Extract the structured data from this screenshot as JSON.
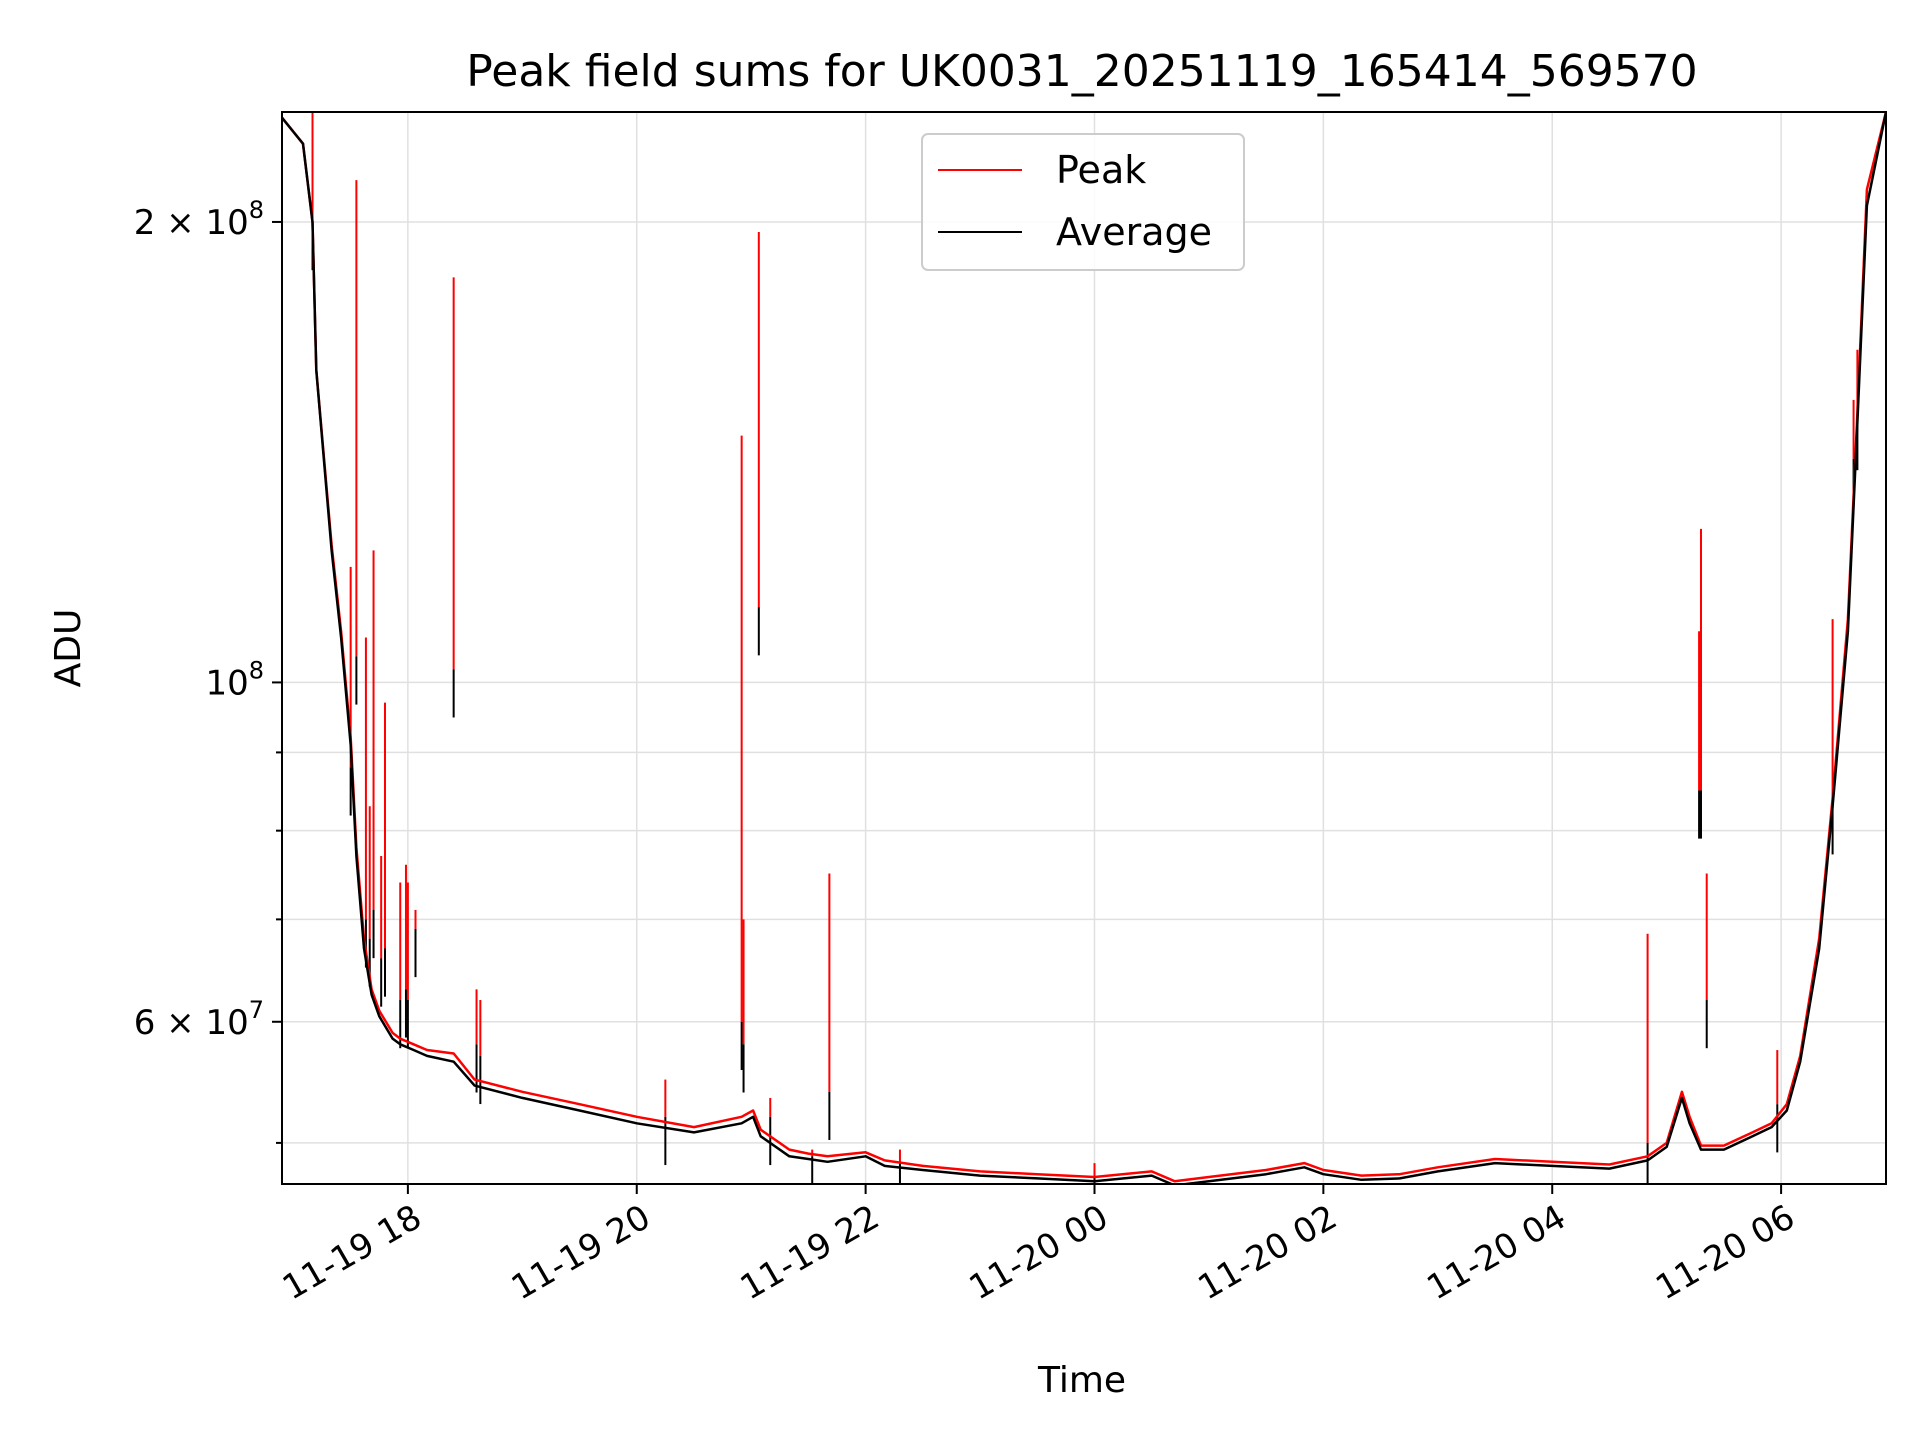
{
  "chart_data": {
    "type": "line",
    "title": "Peak field sums for UK0031_20251119_165414_569570",
    "xlabel": "Time",
    "ylabel": "ADU",
    "yscale": "log",
    "xlim": [
      "2025-11-19T16:54:00",
      "2025-11-20T06:55:00"
    ],
    "ylim": [
      47000000,
      236000000
    ],
    "grid": true,
    "legend_placement": "upper-center",
    "colors": {
      "peak": "#ff0000",
      "average": "#000000",
      "grid": "#e0e0e0"
    },
    "x_ticks": [
      {
        "t": "2025-11-19T18:00:00",
        "label": "11-19 18"
      },
      {
        "t": "2025-11-19T20:00:00",
        "label": "11-19 20"
      },
      {
        "t": "2025-11-19T22:00:00",
        "label": "11-19 22"
      },
      {
        "t": "2025-11-20T00:00:00",
        "label": "11-20 00"
      },
      {
        "t": "2025-11-20T02:00:00",
        "label": "11-20 02"
      },
      {
        "t": "2025-11-20T04:00:00",
        "label": "11-20 04"
      },
      {
        "t": "2025-11-20T06:00:00",
        "label": "11-20 06"
      }
    ],
    "y_ticks_major": [
      {
        "v": 100000000,
        "base": "10",
        "exp": "8",
        "coef": ""
      },
      {
        "v": 200000000,
        "base": "10",
        "exp": "8",
        "coef": "2"
      },
      {
        "v": 60000000,
        "base": "10",
        "exp": "7",
        "coef": "6"
      }
    ],
    "y_ticks_minor": [
      50000000,
      70000000,
      80000000,
      90000000
    ],
    "series": [
      {
        "name": "Peak",
        "x": [
          "2025-11-19T16:54:00",
          "2025-11-19T17:05:00",
          "2025-11-19T17:10:00",
          "2025-11-19T17:12:00",
          "2025-11-19T17:20:00",
          "2025-11-19T17:25:00",
          "2025-11-19T17:30:00",
          "2025-11-19T17:33:00",
          "2025-11-19T17:37:00",
          "2025-11-19T17:41:00",
          "2025-11-19T17:45:00",
          "2025-11-19T17:52:00",
          "2025-11-19T17:56:00",
          "2025-11-19T18:03:00",
          "2025-11-19T18:10:00",
          "2025-11-19T18:24:00",
          "2025-11-19T18:35:00",
          "2025-11-19T19:00:00",
          "2025-11-19T19:30:00",
          "2025-11-19T20:00:00",
          "2025-11-19T20:30:00",
          "2025-11-19T20:55:00",
          "2025-11-19T21:01:00",
          "2025-11-19T21:05:00",
          "2025-11-19T21:20:00",
          "2025-11-19T21:30:00",
          "2025-11-19T21:40:00",
          "2025-11-19T22:00:00",
          "2025-11-19T22:10:00",
          "2025-11-19T22:30:00",
          "2025-11-19T23:00:00",
          "2025-11-19T23:30:00",
          "2025-11-20T00:00:00",
          "2025-11-20T00:30:00",
          "2025-11-20T00:42:00",
          "2025-11-20T01:00:00",
          "2025-11-20T01:30:00",
          "2025-11-20T01:50:00",
          "2025-11-20T02:00:00",
          "2025-11-20T02:20:00",
          "2025-11-20T02:40:00",
          "2025-11-20T03:00:00",
          "2025-11-20T03:30:00",
          "2025-11-20T04:00:00",
          "2025-11-20T04:30:00",
          "2025-11-20T04:50:00",
          "2025-11-20T05:00:00",
          "2025-11-20T05:08:00",
          "2025-11-20T05:12:00",
          "2025-11-20T05:18:00",
          "2025-11-20T05:30:00",
          "2025-11-20T05:45:00",
          "2025-11-20T05:55:00",
          "2025-11-20T06:03:00",
          "2025-11-20T06:10:00",
          "2025-11-20T06:20:00",
          "2025-11-20T06:27:00",
          "2025-11-20T06:35:00",
          "2025-11-20T06:40:00",
          "2025-11-20T06:45:00",
          "2025-11-20T06:55:00"
        ],
        "values": [
          234000000,
          225000000,
          200000000,
          160000000,
          123000000,
          108000000,
          92000000,
          78000000,
          68000000,
          63000000,
          61000000,
          59000000,
          58500000,
          58000000,
          57500000,
          57200000,
          55000000,
          54000000,
          53000000,
          52000000,
          51200000,
          52000000,
          52500000,
          51000000,
          49500000,
          49200000,
          49000000,
          49300000,
          48700000,
          48300000,
          47900000,
          47700000,
          47500000,
          47900000,
          47200000,
          47500000,
          48000000,
          48500000,
          48000000,
          47600000,
          47700000,
          48200000,
          48800000,
          48600000,
          48400000,
          49000000,
          50000000,
          54000000,
          52000000,
          49800000,
          49800000,
          50800000,
          51500000,
          53000000,
          57000000,
          68000000,
          84000000,
          110000000,
          150000000,
          210000000,
          236000000
        ]
      },
      {
        "name": "Average",
        "x": [
          "2025-11-19T16:54:00",
          "2025-11-19T17:05:00",
          "2025-11-19T17:10:00",
          "2025-11-19T17:12:00",
          "2025-11-19T17:20:00",
          "2025-11-19T17:25:00",
          "2025-11-19T17:30:00",
          "2025-11-19T17:33:00",
          "2025-11-19T17:37:00",
          "2025-11-19T17:41:00",
          "2025-11-19T17:45:00",
          "2025-11-19T17:52:00",
          "2025-11-19T17:56:00",
          "2025-11-19T18:03:00",
          "2025-11-19T18:10:00",
          "2025-11-19T18:24:00",
          "2025-11-19T18:35:00",
          "2025-11-19T19:00:00",
          "2025-11-19T19:30:00",
          "2025-11-19T20:00:00",
          "2025-11-19T20:30:00",
          "2025-11-19T20:55:00",
          "2025-11-19T21:01:00",
          "2025-11-19T21:05:00",
          "2025-11-19T21:20:00",
          "2025-11-19T21:30:00",
          "2025-11-19T21:40:00",
          "2025-11-19T22:00:00",
          "2025-11-19T22:10:00",
          "2025-11-19T22:30:00",
          "2025-11-19T23:00:00",
          "2025-11-19T23:30:00",
          "2025-11-20T00:00:00",
          "2025-11-20T00:30:00",
          "2025-11-20T00:42:00",
          "2025-11-20T01:00:00",
          "2025-11-20T01:30:00",
          "2025-11-20T01:50:00",
          "2025-11-20T02:00:00",
          "2025-11-20T02:20:00",
          "2025-11-20T02:40:00",
          "2025-11-20T03:00:00",
          "2025-11-20T03:30:00",
          "2025-11-20T04:00:00",
          "2025-11-20T04:30:00",
          "2025-11-20T04:50:00",
          "2025-11-20T05:00:00",
          "2025-11-20T05:08:00",
          "2025-11-20T05:12:00",
          "2025-11-20T05:18:00",
          "2025-11-20T05:30:00",
          "2025-11-20T05:45:00",
          "2025-11-20T05:55:00",
          "2025-11-20T06:03:00",
          "2025-11-20T06:10:00",
          "2025-11-20T06:20:00",
          "2025-11-20T06:27:00",
          "2025-11-20T06:35:00",
          "2025-11-20T06:40:00",
          "2025-11-20T06:45:00",
          "2025-11-20T06:55:00"
        ],
        "values": [
          234000000,
          225000000,
          200000000,
          160000000,
          122000000,
          107000000,
          91000000,
          77000000,
          67000000,
          62500000,
          60500000,
          58500000,
          58000000,
          57500000,
          57000000,
          56500000,
          54500000,
          53500000,
          52500000,
          51500000,
          50800000,
          51500000,
          52000000,
          50500000,
          49000000,
          48800000,
          48600000,
          49000000,
          48300000,
          48000000,
          47600000,
          47400000,
          47200000,
          47600000,
          46900000,
          47200000,
          47700000,
          48200000,
          47700000,
          47300000,
          47400000,
          47900000,
          48500000,
          48300000,
          48100000,
          48700000,
          49700000,
          53500000,
          51500000,
          49500000,
          49500000,
          50500000,
          51200000,
          52500000,
          56500000,
          67000000,
          83000000,
          108000000,
          148000000,
          205000000,
          236000000
        ]
      }
    ],
    "spikes": [
      {
        "t": "2025-11-19T17:10:00",
        "peak": 236000000,
        "average": 200000000
      },
      {
        "t": "2025-11-19T17:30:00",
        "peak": 119000000,
        "average": 88000000
      },
      {
        "t": "2025-11-19T17:33:00",
        "peak": 213000000,
        "average": 104000000
      },
      {
        "t": "2025-11-19T17:38:00",
        "peak": 107000000,
        "average": 70000000
      },
      {
        "t": "2025-11-19T17:40:00",
        "peak": 83000000,
        "average": 68000000
      },
      {
        "t": "2025-11-19T17:42:00",
        "peak": 122000000,
        "average": 71000000
      },
      {
        "t": "2025-11-19T17:46:00",
        "peak": 77000000,
        "average": 66000000
      },
      {
        "t": "2025-11-19T17:48:00",
        "peak": 97000000,
        "average": 67000000
      },
      {
        "t": "2025-11-19T17:56:00",
        "peak": 74000000,
        "average": 62000000
      },
      {
        "t": "2025-11-19T17:59:00",
        "peak": 76000000,
        "average": 63000000
      },
      {
        "t": "2025-11-19T18:00:00",
        "peak": 74000000,
        "average": 62000000
      },
      {
        "t": "2025-11-19T18:04:00",
        "peak": 71000000,
        "average": 69000000
      },
      {
        "t": "2025-11-19T18:24:00",
        "peak": 184000000,
        "average": 102000000
      },
      {
        "t": "2025-11-19T18:36:00",
        "peak": 63000000,
        "average": 58000000
      },
      {
        "t": "2025-11-19T18:38:00",
        "peak": 62000000,
        "average": 57000000
      },
      {
        "t": "2025-11-19T20:15:00",
        "peak": 55000000,
        "average": 52000000
      },
      {
        "t": "2025-11-19T20:55:00",
        "peak": 145000000,
        "average": 60000000
      },
      {
        "t": "2025-11-19T20:56:00",
        "peak": 70000000,
        "average": 58000000
      },
      {
        "t": "2025-11-19T21:04:00",
        "peak": 197000000,
        "average": 112000000
      },
      {
        "t": "2025-11-19T21:10:00",
        "peak": 53500000,
        "average": 52000000
      },
      {
        "t": "2025-11-19T21:32:00",
        "peak": 49500000,
        "average": 49000000
      },
      {
        "t": "2025-11-19T21:41:00",
        "peak": 75000000,
        "average": 54000000
      },
      {
        "t": "2025-11-19T22:18:00",
        "peak": 49500000,
        "average": 48500000
      },
      {
        "t": "2025-11-20T00:00:00",
        "peak": 48500000,
        "average": 47500000
      },
      {
        "t": "2025-11-20T04:50:00",
        "peak": 68500000,
        "average": 50000000
      },
      {
        "t": "2025-11-20T05:17:00",
        "peak": 108000000,
        "average": 85000000
      },
      {
        "t": "2025-11-20T05:18:00",
        "peak": 126000000,
        "average": 85000000
      },
      {
        "t": "2025-11-20T05:21:00",
        "peak": 75000000,
        "average": 62000000
      },
      {
        "t": "2025-11-20T05:58:00",
        "peak": 57500000,
        "average": 53000000
      },
      {
        "t": "2025-11-20T06:27:00",
        "peak": 110000000,
        "average": 83000000
      },
      {
        "t": "2025-11-20T06:38:00",
        "peak": 153000000,
        "average": 140000000
      },
      {
        "t": "2025-11-20T06:40:00",
        "peak": 165000000,
        "average": 148000000
      }
    ]
  }
}
